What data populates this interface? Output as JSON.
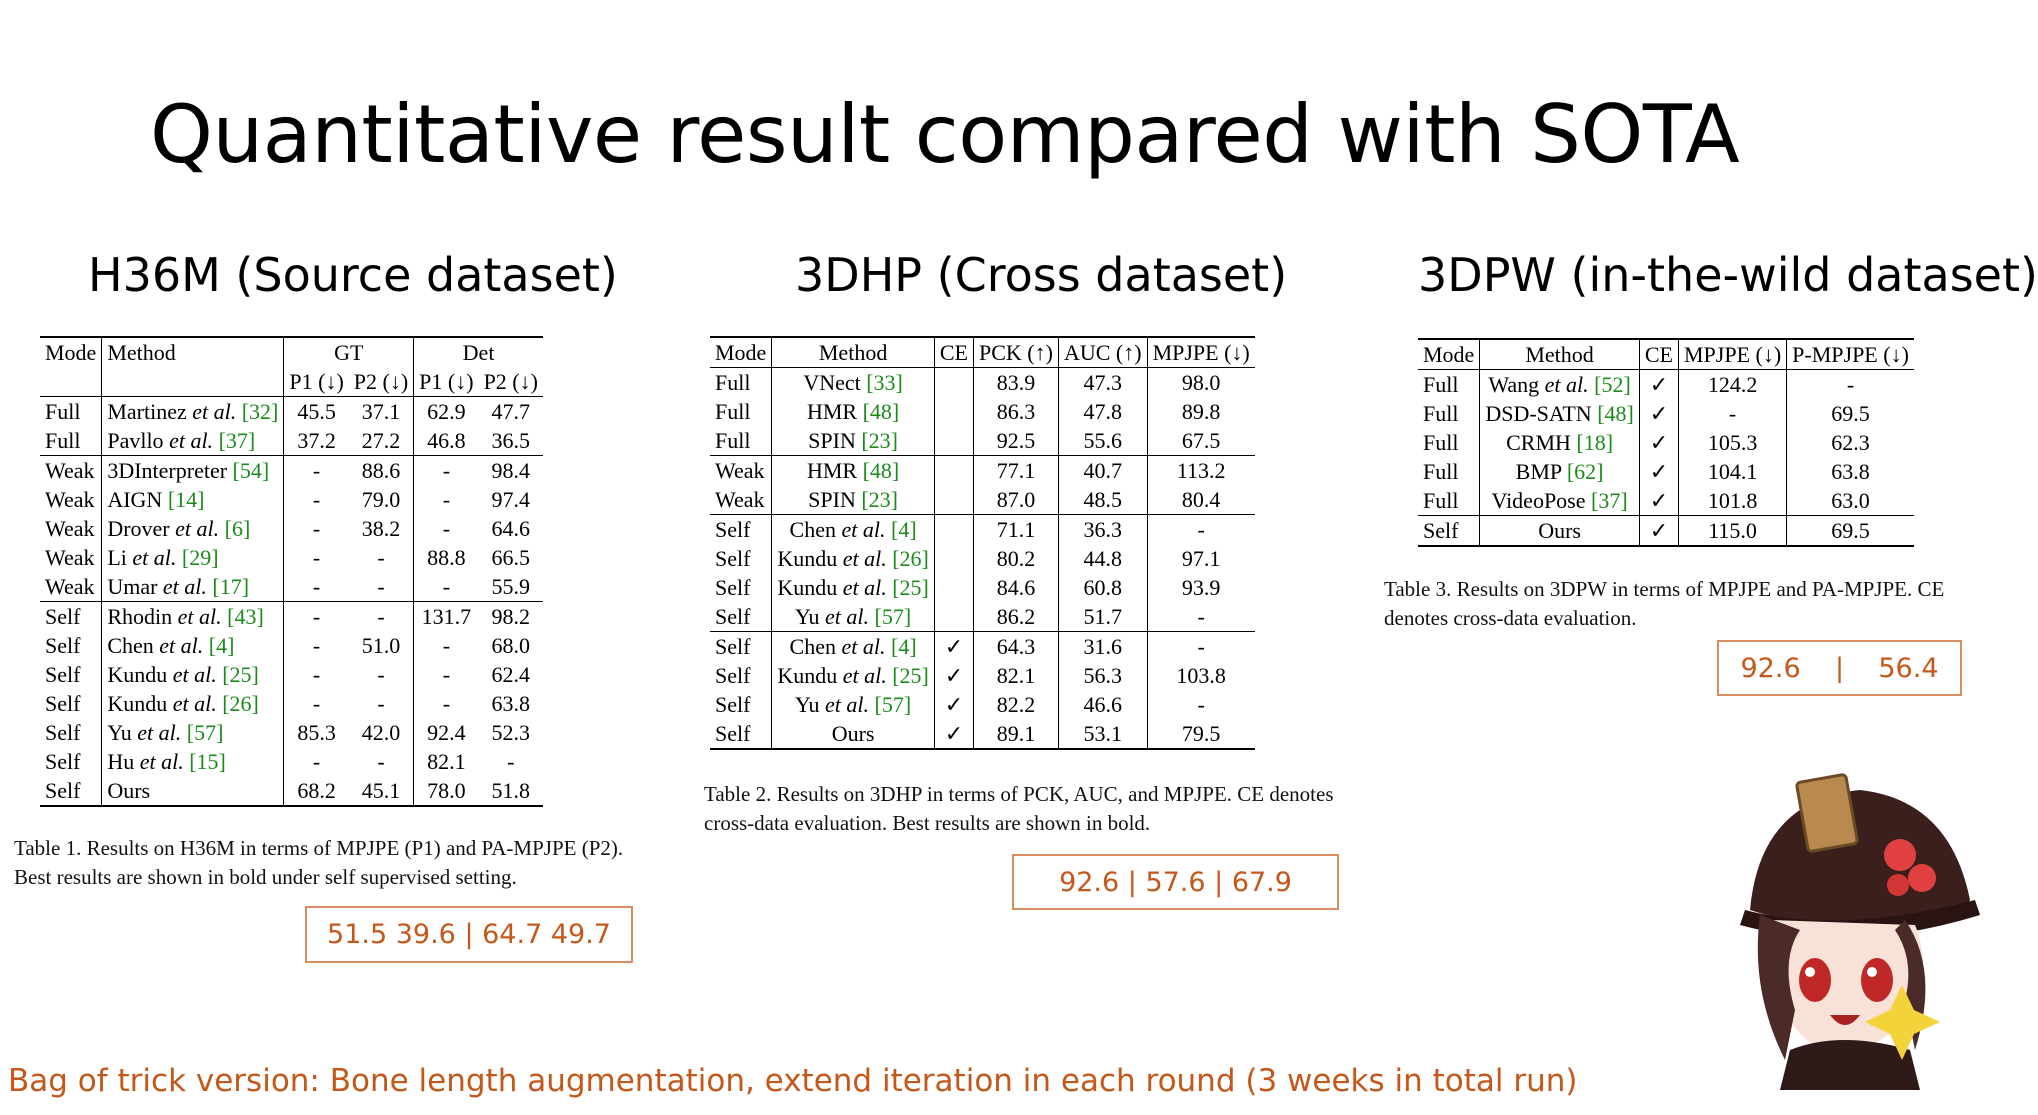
{
  "title": "Quantitative result compared with SOTA",
  "h36m": {
    "heading": "H36M (Source dataset)",
    "head": {
      "mode": "Mode",
      "method": "Method",
      "gt": "GT",
      "det": "Det",
      "p1": "P1 (↓)",
      "p2": "P2 (↓)"
    },
    "groups": [
      [
        [
          "Full",
          "Martinez et al. [32]",
          "45.5",
          "37.1",
          "62.9",
          "47.7"
        ],
        [
          "Full",
          "Pavllo et al. [37]",
          "37.2",
          "27.2",
          "46.8",
          "36.5"
        ]
      ],
      [
        [
          "Weak",
          "3DInterpreter [54]",
          "-",
          "88.6",
          "-",
          "98.4"
        ],
        [
          "Weak",
          "AIGN [14]",
          "-",
          "79.0",
          "-",
          "97.4"
        ],
        [
          "Weak",
          "Drover et al. [6]",
          "-",
          "38.2",
          "-",
          "64.6"
        ],
        [
          "Weak",
          "Li et al. [29]",
          "-",
          "-",
          "88.8",
          "66.5"
        ],
        [
          "Weak",
          "Umar et al. [17]",
          "-",
          "-",
          "-",
          "55.9"
        ]
      ],
      [
        [
          "Self",
          "Rhodin et al. [43]",
          "-",
          "-",
          "131.7",
          "98.2"
        ],
        [
          "Self",
          "Chen et al. [4]",
          "-",
          "51.0",
          "-",
          "68.0"
        ],
        [
          "Self",
          "Kundu et al. [25]",
          "-",
          "-",
          "-",
          "62.4"
        ],
        [
          "Self",
          "Kundu et al. [26]",
          "-",
          "-",
          "-",
          "63.8"
        ],
        [
          "Self",
          "Yu et al. [57]",
          "85.3",
          "42.0",
          "92.4",
          "52.3"
        ],
        [
          "Self",
          "Hu et al. [15]",
          "-",
          "-",
          "82.1",
          "-"
        ],
        [
          "Self",
          "Ours",
          "68.2",
          "45.1",
          "78.0",
          "51.8"
        ]
      ]
    ],
    "caption": "Table 1.  Results on H36M in terms of MPJPE (P1) and PA-MPJPE (P2). Best results are shown in bold under self supervised setting.",
    "box": "51.5 39.6 | 64.7 49.7"
  },
  "dhp": {
    "heading": "3DHP (Cross dataset)",
    "head": [
      "Mode",
      "Method",
      "CE",
      "PCK (↑)",
      "AUC (↑)",
      "MPJPE (↓)"
    ],
    "groups": [
      [
        [
          "Full",
          "VNect [33]",
          "",
          "83.9",
          "47.3",
          "98.0"
        ],
        [
          "Full",
          "HMR [48]",
          "",
          "86.3",
          "47.8",
          "89.8"
        ],
        [
          "Full",
          "SPIN [23]",
          "",
          "92.5",
          "55.6",
          "67.5"
        ]
      ],
      [
        [
          "Weak",
          "HMR [48]",
          "",
          "77.1",
          "40.7",
          "113.2"
        ],
        [
          "Weak",
          "SPIN [23]",
          "",
          "87.0",
          "48.5",
          "80.4"
        ]
      ],
      [
        [
          "Self",
          "Chen et al. [4]",
          "",
          "71.1",
          "36.3",
          "-"
        ],
        [
          "Self",
          "Kundu et al. [26]",
          "",
          "80.2",
          "44.8",
          "97.1"
        ],
        [
          "Self",
          "Kundu et al. [25]",
          "",
          "84.6",
          "60.8",
          "93.9"
        ],
        [
          "Self",
          "Yu et al. [57]",
          "",
          "86.2",
          "51.7",
          "-"
        ]
      ],
      [
        [
          "Self",
          "Chen et al. [4]",
          "✓",
          "64.3",
          "31.6",
          "-"
        ],
        [
          "Self",
          "Kundu et al. [25]",
          "✓",
          "82.1",
          "56.3",
          "103.8"
        ],
        [
          "Self",
          "Yu et al. [57]",
          "✓",
          "82.2",
          "46.6",
          "-"
        ],
        [
          "Self",
          "Ours",
          "✓",
          "89.1",
          "53.1",
          "79.5"
        ]
      ]
    ],
    "caption": "Table 2.  Results on 3DHP in terms of PCK, AUC, and MPJPE. CE denotes cross-data evaluation. Best results are shown in bold.",
    "box": "92.6 | 57.6 | 67.9"
  },
  "dpw": {
    "heading": "3DPW (in-the-wild dataset)",
    "head": [
      "Mode",
      "Method",
      "CE",
      "MPJPE (↓)",
      "P-MPJPE (↓)"
    ],
    "groups": [
      [
        [
          "Full",
          "Wang et al. [52]",
          "✓",
          "124.2",
          "-"
        ],
        [
          "Full",
          "DSD-SATN [48]",
          "✓",
          "-",
          "69.5"
        ],
        [
          "Full",
          "CRMH [18]",
          "✓",
          "105.3",
          "62.3"
        ],
        [
          "Full",
          "BMP [62]",
          "✓",
          "104.1",
          "63.8"
        ],
        [
          "Full",
          "VideoPose [37]",
          "✓",
          "101.8",
          "63.0"
        ]
      ],
      [
        [
          "Self",
          "Ours",
          "✓",
          "115.0",
          "69.5"
        ]
      ]
    ],
    "caption": "Table 3.  Results on 3DPW in terms of MPJPE and PA-MPJPE. CE denotes cross-data evaluation.",
    "box": "92.6    |    56.4"
  },
  "footnote": "Bag of trick version: Bone length augmentation, extend iteration in each round (3 weeks in total run)",
  "colors": {
    "accent": "#c4581b",
    "box_border": "#d98c5f",
    "ref_green": "#1b8a1b"
  }
}
